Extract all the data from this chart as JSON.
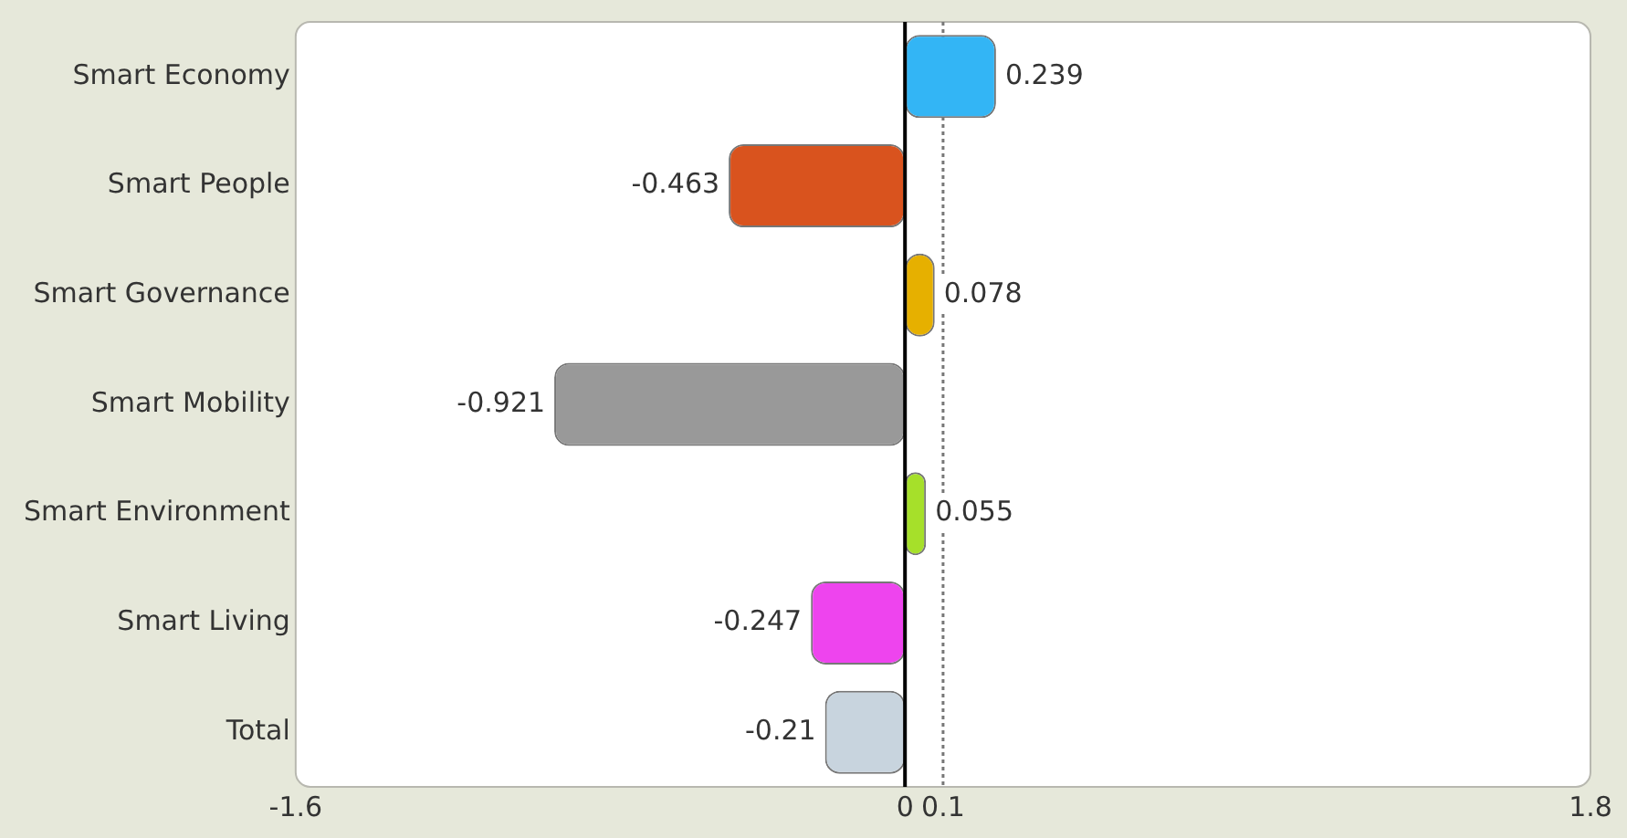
{
  "chart_data": {
    "type": "bar",
    "orientation": "horizontal",
    "categories": [
      "Smart Economy",
      "Smart People",
      "Smart Governance",
      "Smart Mobility",
      "Smart Environment",
      "Smart Living",
      "Total"
    ],
    "values": [
      0.239,
      -0.463,
      0.078,
      -0.921,
      0.055,
      -0.247,
      -0.21
    ],
    "colors": [
      "#33b5f5",
      "#d9531e",
      "#e6b000",
      "#999999",
      "#a6e02a",
      "#ee44ee",
      "#c8d4de"
    ],
    "xlim": [
      -1.6,
      1.8
    ],
    "xticks": [
      -1.6,
      0,
      0.1,
      1.8
    ],
    "ref_lines": [
      {
        "axis": "x",
        "value": 0.1,
        "color": "#777777",
        "line_style": "dotted"
      }
    ],
    "legend": false,
    "data_labels": true
  }
}
